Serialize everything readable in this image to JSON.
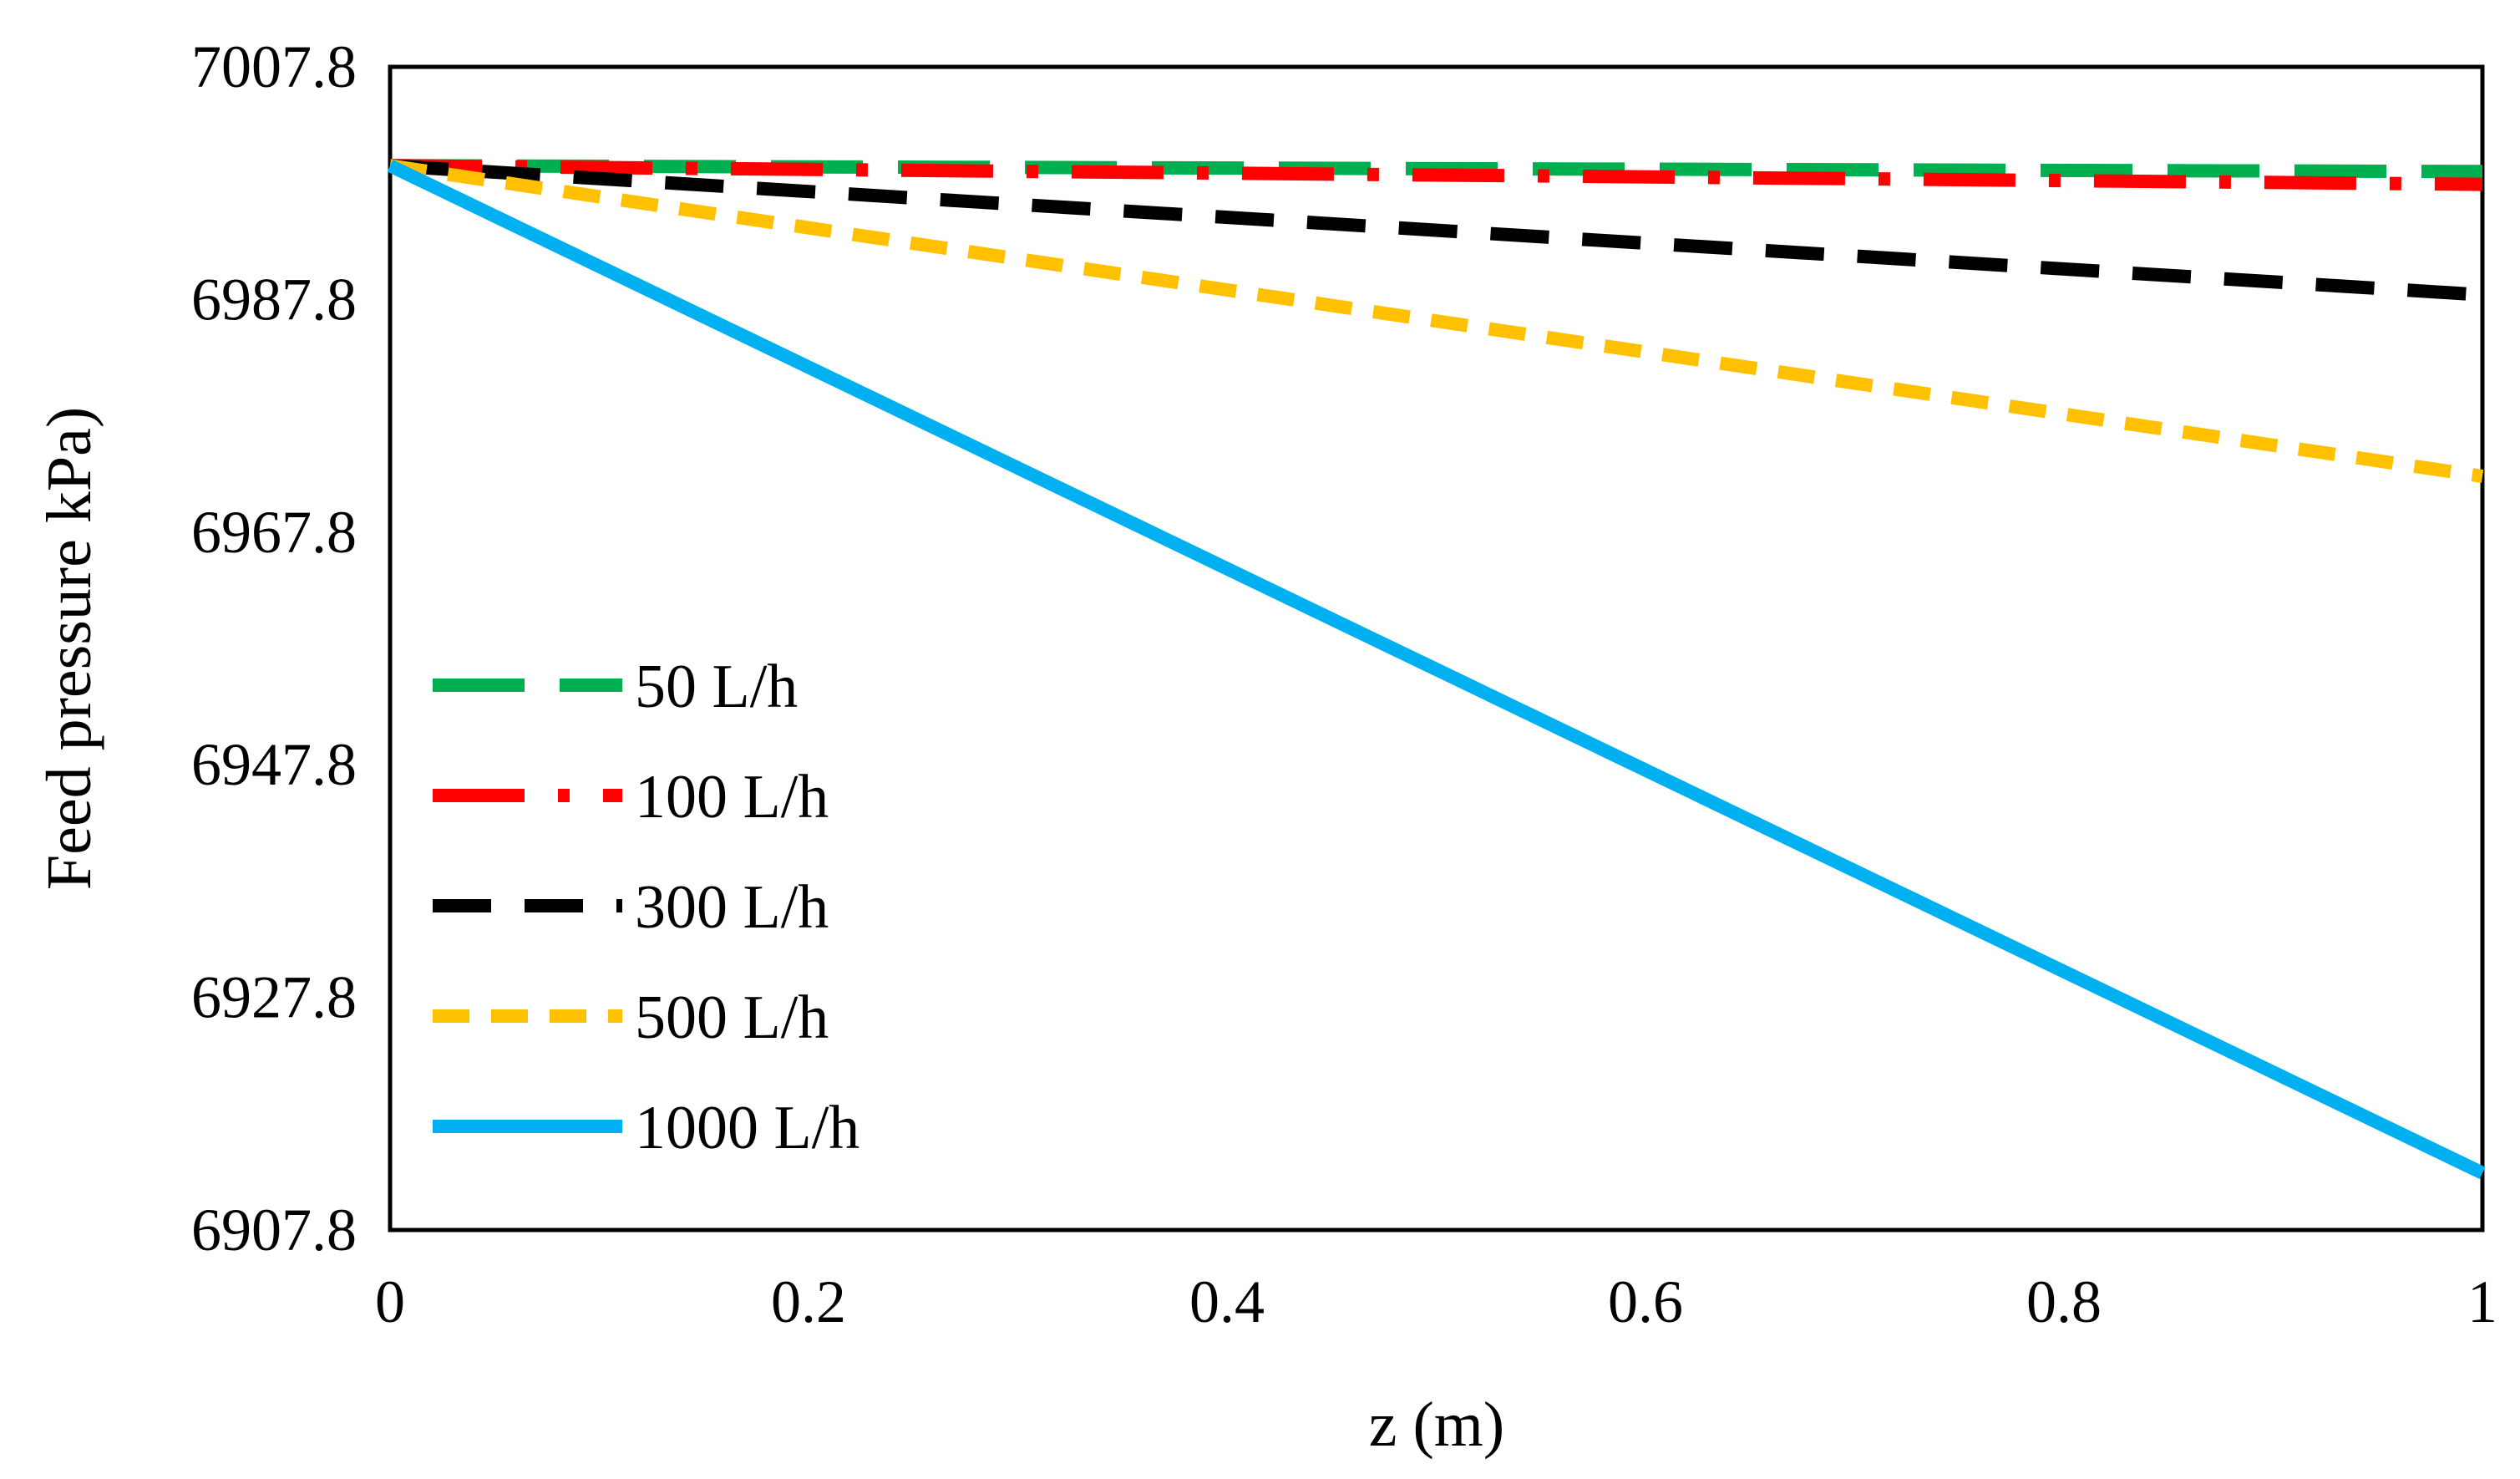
{
  "chart_data": {
    "type": "line",
    "title": "",
    "xlabel": "z (m)",
    "ylabel": "Feed pressure kPa)",
    "xlim": [
      0,
      1
    ],
    "ylim": [
      6907.8,
      7007.8
    ],
    "xticks": [
      0,
      0.2,
      0.4,
      0.6,
      0.8,
      1
    ],
    "xtick_labels": [
      "0",
      "0.2",
      "0.4",
      "0.6",
      "0.8",
      "1"
    ],
    "yticks": [
      6907.8,
      6927.8,
      6947.8,
      6967.8,
      6987.8,
      7007.8
    ],
    "ytick_labels": [
      "6907.8",
      "6927.8",
      "6947.8",
      "6967.8",
      "6987.8",
      "7007.8"
    ],
    "grid": false,
    "legend_position": "center-left",
    "series": [
      {
        "name": "50 L/h",
        "color": "#00B050",
        "style": "long-dash",
        "x": [
          0,
          1
        ],
        "y": [
          6999.3,
          6998.8
        ]
      },
      {
        "name": "100 L/h",
        "color": "#FF0000",
        "style": "long-dash-dot",
        "x": [
          0,
          1
        ],
        "y": [
          6999.3,
          6997.7
        ]
      },
      {
        "name": "300 L/h",
        "color": "#000000",
        "style": "dash",
        "x": [
          0,
          1
        ],
        "y": [
          6999.3,
          6988.2
        ]
      },
      {
        "name": "500 L/h",
        "color": "#FFC000",
        "style": "short-dash",
        "x": [
          0,
          1
        ],
        "y": [
          6999.3,
          6972.6
        ]
      },
      {
        "name": "1000 L/h",
        "color": "#00B0F0",
        "style": "solid",
        "x": [
          0,
          1
        ],
        "y": [
          6999.3,
          6912.7
        ]
      }
    ]
  }
}
